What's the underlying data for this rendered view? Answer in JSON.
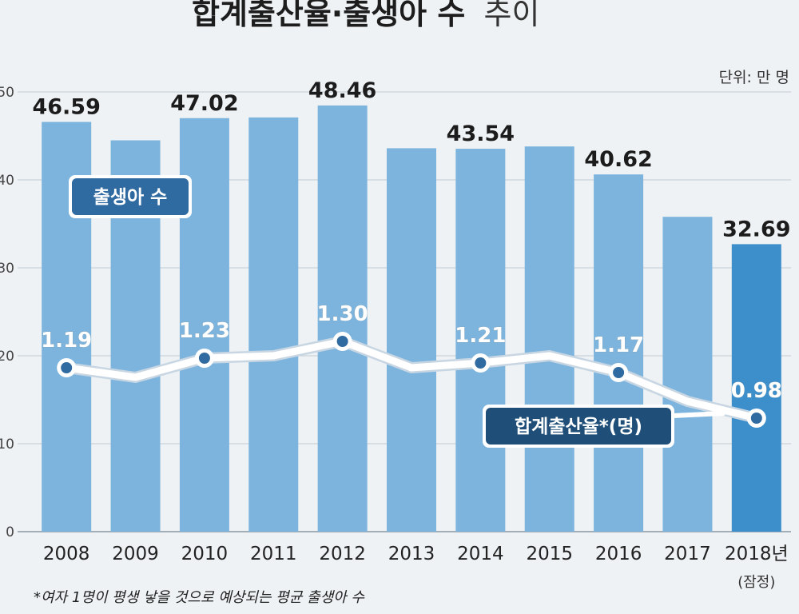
{
  "chart_data": {
    "type": "bar",
    "title": "합계출산율·출생아 수",
    "title_tail": "추이",
    "unit_label": "단위: 만 명",
    "categories": [
      "2008",
      "2009",
      "2010",
      "2011",
      "2012",
      "2013",
      "2014",
      "2015",
      "2016",
      "2017",
      "2018년"
    ],
    "x_sublabel": "(잠정)",
    "ylim": [
      0,
      50
    ],
    "yticks": [
      "0",
      "10",
      "20",
      "30",
      "40",
      "50"
    ],
    "series": [
      {
        "name": "출생아 수",
        "type": "bar",
        "values": [
          46.59,
          44.5,
          47.02,
          47.1,
          48.46,
          43.6,
          43.54,
          43.8,
          40.62,
          35.8,
          32.69
        ],
        "labels": [
          "46.59",
          "",
          "47.02",
          "",
          "48.46",
          "",
          "43.54",
          "",
          "40.62",
          "",
          "32.69"
        ],
        "color": "#7cb4de",
        "highlight_color": "#3d8fcc"
      },
      {
        "name": "합계출산율*(명)",
        "type": "line",
        "values": [
          1.19,
          1.15,
          1.23,
          1.24,
          1.3,
          1.19,
          1.21,
          1.24,
          1.17,
          1.05,
          0.98
        ],
        "labels": [
          "1.19",
          "",
          "1.23",
          "",
          "1.30",
          "",
          "1.21",
          "",
          "1.17",
          "",
          "0.98"
        ],
        "color": "#ffffff",
        "marker_color": "#2f6aa0"
      }
    ],
    "footnote": "*여자 1명이 평생 낳을 것으로 예상되는 평균 출생아 수",
    "grid": true
  }
}
